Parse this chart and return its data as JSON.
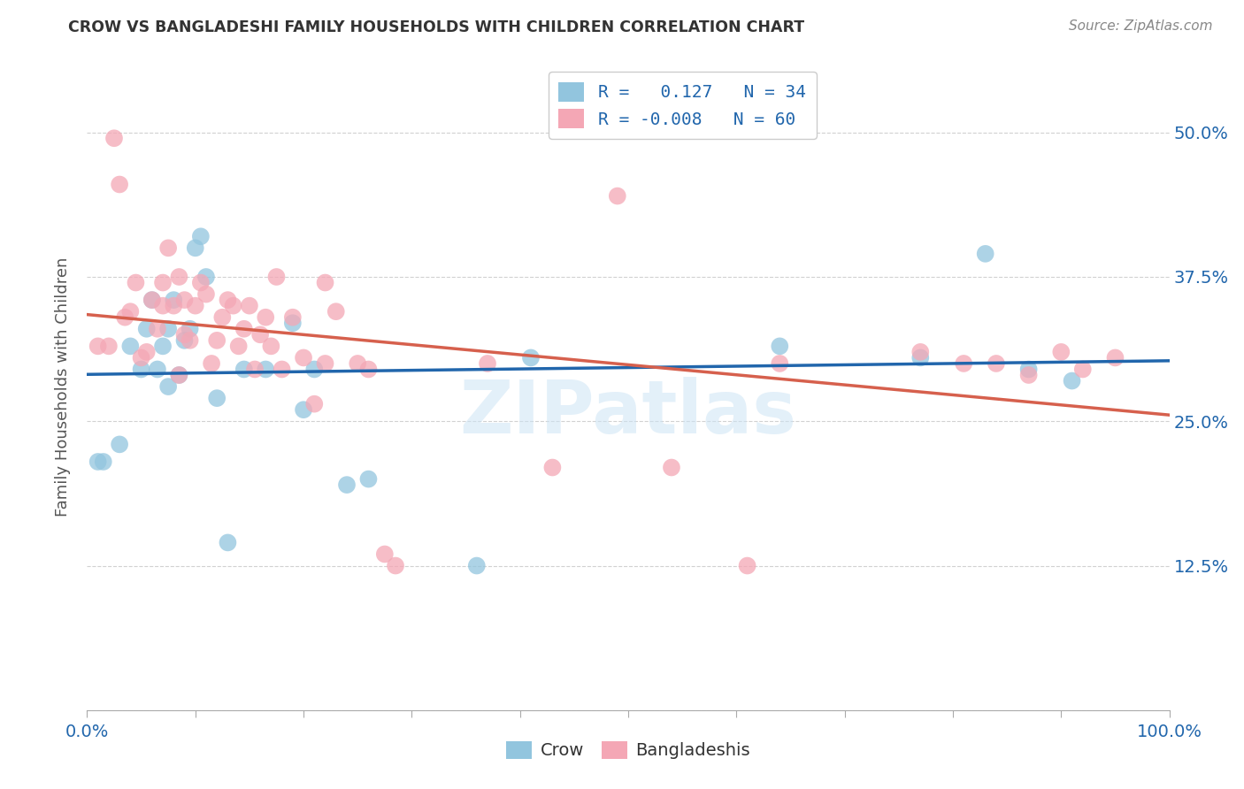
{
  "title": "CROW VS BANGLADESHI FAMILY HOUSEHOLDS WITH CHILDREN CORRELATION CHART",
  "source": "Source: ZipAtlas.com",
  "ylabel": "Family Households with Children",
  "crow_R": 0.127,
  "crow_N": 34,
  "bangladeshi_R": -0.008,
  "bangladeshi_N": 60,
  "crow_color": "#92c5de",
  "bangladeshi_color": "#f4a7b5",
  "trend_crow_color": "#2166ac",
  "trend_bangladeshi_color": "#d6604d",
  "watermark": "ZIPatlas",
  "background_color": "#ffffff",
  "crow_x": [
    0.01,
    0.015,
    0.03,
    0.04,
    0.05,
    0.055,
    0.06,
    0.065,
    0.07,
    0.075,
    0.075,
    0.08,
    0.085,
    0.09,
    0.095,
    0.1,
    0.105,
    0.11,
    0.12,
    0.13,
    0.145,
    0.165,
    0.19,
    0.2,
    0.21,
    0.24,
    0.26,
    0.36,
    0.41,
    0.64,
    0.77,
    0.83,
    0.87,
    0.91
  ],
  "crow_y": [
    0.215,
    0.215,
    0.23,
    0.315,
    0.295,
    0.33,
    0.355,
    0.295,
    0.315,
    0.28,
    0.33,
    0.355,
    0.29,
    0.32,
    0.33,
    0.4,
    0.41,
    0.375,
    0.27,
    0.145,
    0.295,
    0.295,
    0.335,
    0.26,
    0.295,
    0.195,
    0.2,
    0.125,
    0.305,
    0.315,
    0.305,
    0.395,
    0.295,
    0.285
  ],
  "bangladeshi_x": [
    0.01,
    0.02,
    0.025,
    0.03,
    0.035,
    0.04,
    0.045,
    0.05,
    0.055,
    0.06,
    0.065,
    0.07,
    0.07,
    0.075,
    0.08,
    0.085,
    0.085,
    0.09,
    0.09,
    0.095,
    0.1,
    0.105,
    0.11,
    0.115,
    0.12,
    0.125,
    0.13,
    0.135,
    0.14,
    0.145,
    0.15,
    0.155,
    0.16,
    0.165,
    0.17,
    0.175,
    0.18,
    0.19,
    0.2,
    0.21,
    0.22,
    0.22,
    0.23,
    0.25,
    0.26,
    0.275,
    0.285,
    0.37,
    0.43,
    0.49,
    0.54,
    0.61,
    0.64,
    0.77,
    0.81,
    0.84,
    0.87,
    0.9,
    0.92,
    0.95
  ],
  "bangladeshi_y": [
    0.315,
    0.315,
    0.495,
    0.455,
    0.34,
    0.345,
    0.37,
    0.305,
    0.31,
    0.355,
    0.33,
    0.35,
    0.37,
    0.4,
    0.35,
    0.375,
    0.29,
    0.325,
    0.355,
    0.32,
    0.35,
    0.37,
    0.36,
    0.3,
    0.32,
    0.34,
    0.355,
    0.35,
    0.315,
    0.33,
    0.35,
    0.295,
    0.325,
    0.34,
    0.315,
    0.375,
    0.295,
    0.34,
    0.305,
    0.265,
    0.3,
    0.37,
    0.345,
    0.3,
    0.295,
    0.135,
    0.125,
    0.3,
    0.21,
    0.445,
    0.21,
    0.125,
    0.3,
    0.31,
    0.3,
    0.3,
    0.29,
    0.31,
    0.295,
    0.305
  ],
  "xlim": [
    0.0,
    1.0
  ],
  "ylim": [
    0.0,
    0.56
  ],
  "yticks": [
    0.0,
    0.125,
    0.25,
    0.375,
    0.5
  ],
  "ytick_labels": [
    "",
    "12.5%",
    "25.0%",
    "37.5%",
    "50.0%"
  ],
  "xticks": [
    0.0,
    0.2,
    0.4,
    0.5,
    0.6,
    0.8,
    1.0
  ],
  "xtick_labels": [
    "0.0%",
    "",
    "",
    "",
    "",
    "",
    "100.0%"
  ]
}
